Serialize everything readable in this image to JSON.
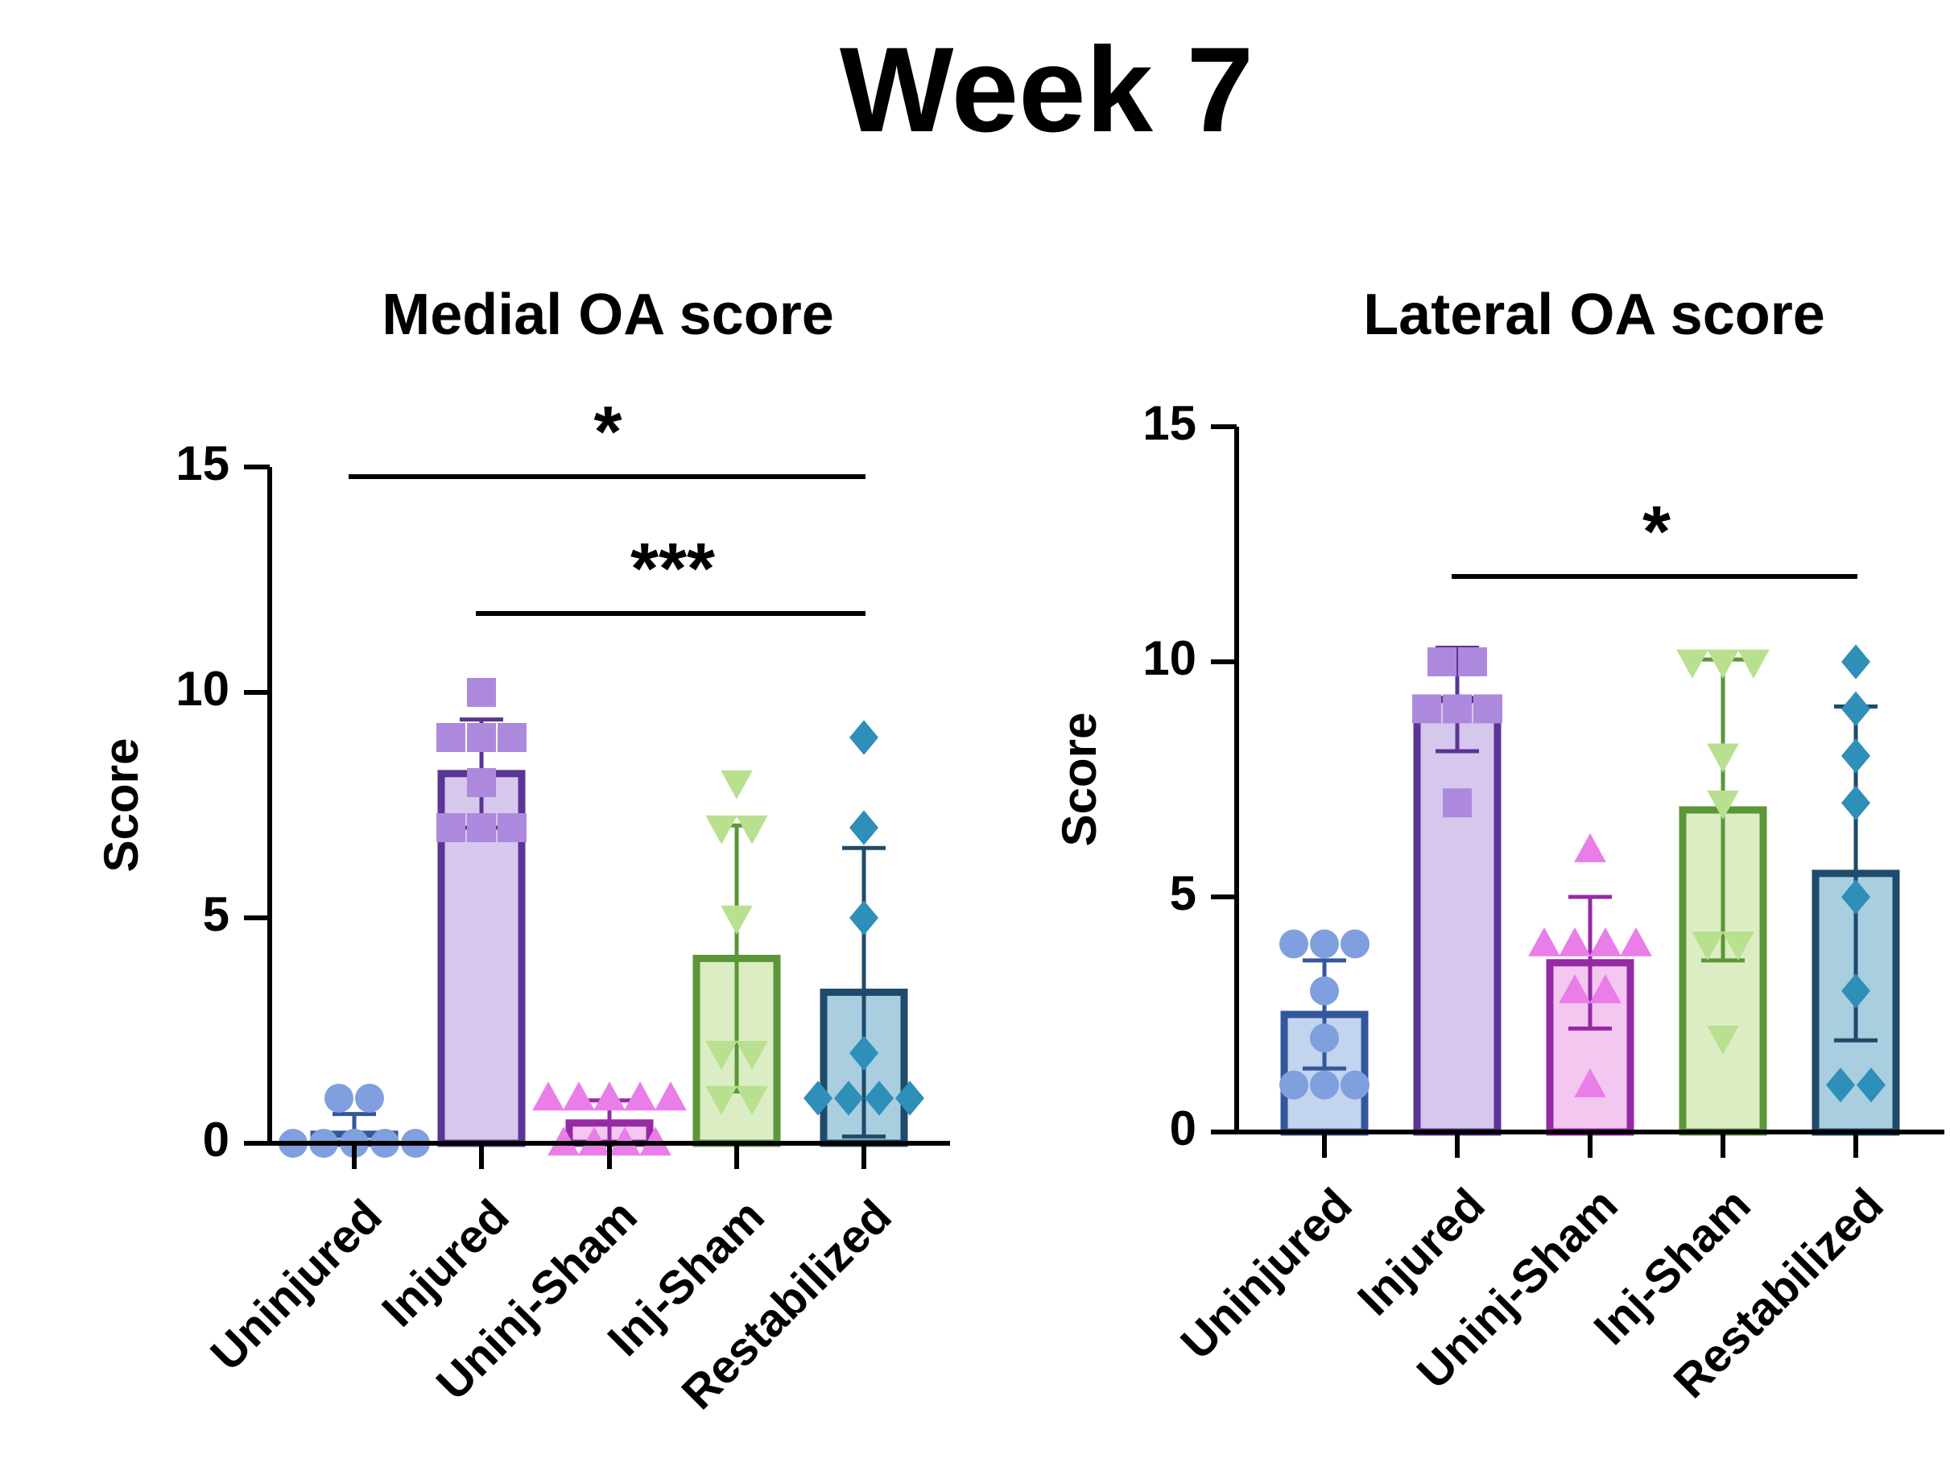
{
  "figure": {
    "title": "Week 7"
  },
  "chart_data": [
    {
      "type": "bar",
      "title": "Medial OA score",
      "ylabel": "Score",
      "ylim": [
        0,
        15
      ],
      "yticks": [
        "0",
        "5",
        "10",
        "15"
      ],
      "categories": [
        "Uninjured",
        "Injured",
        "Uninj-Sham",
        "Inj-Sham",
        "Restabilized"
      ],
      "means": [
        0.2,
        8.2,
        0.45,
        4.1,
        3.35
      ],
      "sd": [
        0.45,
        1.2,
        0.5,
        2.95,
        3.2
      ],
      "points": [
        [
          1,
          1,
          0,
          0,
          0,
          0,
          0
        ],
        [
          10,
          9,
          9,
          9,
          8,
          7,
          7,
          7
        ],
        [
          1,
          1,
          1,
          1,
          1,
          0,
          0,
          0,
          0
        ],
        [
          8,
          7,
          7,
          5,
          2,
          2,
          1,
          1
        ],
        [
          9,
          7,
          5,
          2,
          1,
          1,
          1,
          1
        ]
      ],
      "significance": [
        {
          "from": "Uninjured",
          "to": "Restabilized",
          "label": "*"
        },
        {
          "from": "Injured",
          "to": "Restabilized",
          "label": "***"
        }
      ]
    },
    {
      "type": "bar",
      "title": "Lateral OA score",
      "ylabel": "Score",
      "ylim": [
        0,
        15
      ],
      "yticks": [
        "0",
        "5",
        "10",
        "15"
      ],
      "categories": [
        "Uninjured",
        "Injured",
        "Uninj-Sham",
        "Inj-Sham",
        "Restabilized"
      ],
      "means": [
        2.5,
        9.2,
        3.6,
        6.85,
        5.5
      ],
      "sd": [
        1.15,
        1.1,
        1.4,
        3.2,
        3.55
      ],
      "points": [
        [
          4,
          4,
          4,
          3,
          2,
          1,
          1,
          1
        ],
        [
          10,
          10,
          9,
          9,
          9,
          7
        ],
        [
          6,
          4,
          4,
          4,
          4,
          3,
          3,
          1
        ],
        [
          10,
          10,
          10,
          8,
          7,
          4,
          4,
          2
        ],
        [
          10,
          9,
          8,
          7,
          5,
          3,
          1,
          1
        ]
      ],
      "significance": [
        {
          "from": "Injured",
          "to": "Restabilized",
          "label": "*"
        }
      ]
    }
  ],
  "style": {
    "fills": [
      "#c3d4ef",
      "#d5c8ec",
      "#f4c7f1",
      "#dcedc4",
      "#a8cedf"
    ],
    "strokes": [
      "#34579b",
      "#5a3596",
      "#962aa4",
      "#5b9638",
      "#1e4b6b"
    ],
    "markers": [
      "#7f9fde",
      "#ad89de",
      "#e97ee9",
      "#b8e08f",
      "#2e8fb8"
    ],
    "shapes": [
      "circle",
      "square",
      "triangle-up",
      "triangle-down",
      "diamond"
    ]
  }
}
